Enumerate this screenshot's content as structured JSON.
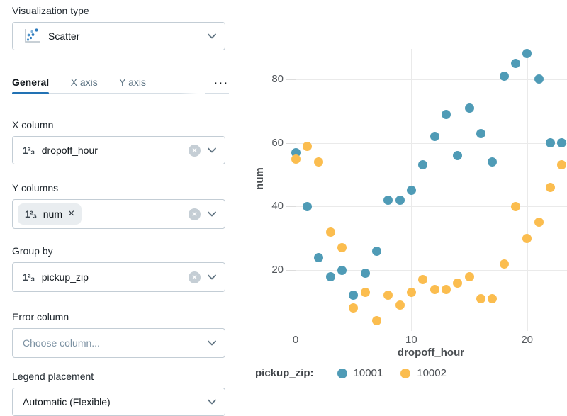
{
  "panel": {
    "viz_type": {
      "label": "Visualization type",
      "value": "Scatter"
    },
    "tabs": {
      "items": [
        "General",
        "X axis",
        "Y axis"
      ],
      "active": "General",
      "overflow": "···"
    },
    "x_column": {
      "label": "X column",
      "value": "dropoff_hour"
    },
    "y_columns": {
      "label": "Y columns",
      "chip": "num",
      "chip_remove": "×"
    },
    "group_by": {
      "label": "Group by",
      "value": "pickup_zip"
    },
    "error_column": {
      "label": "Error column",
      "placeholder": "Choose column..."
    },
    "legend_placement": {
      "label": "Legend placement",
      "value": "Automatic (Flexible)"
    },
    "icons": {
      "number_type": "1²₃",
      "clear": "×"
    },
    "accent_color": "#2272b4"
  },
  "chart_data": {
    "type": "scatter",
    "x": [
      0,
      1,
      2,
      3,
      4,
      5,
      6,
      7,
      8,
      9,
      10,
      11,
      12,
      13,
      14,
      15,
      16,
      17,
      18,
      19,
      20,
      21,
      22,
      23
    ],
    "series": [
      {
        "name": "10001",
        "color": "#4f9bb6",
        "values": [
          57,
          40,
          24,
          18,
          20,
          12,
          19,
          26,
          42,
          42,
          45,
          53,
          62,
          69,
          56,
          71,
          63,
          54,
          81,
          85,
          88,
          80,
          60,
          60
        ]
      },
      {
        "name": "10002",
        "color": "#fbbd4f",
        "values": [
          55,
          59,
          54,
          32,
          27,
          8,
          13,
          4,
          12,
          9,
          13,
          17,
          14,
          14,
          16,
          18,
          11,
          11,
          22,
          40,
          30,
          35,
          46,
          53
        ]
      }
    ],
    "title": "",
    "xlabel": "dropoff_hour",
    "ylabel": "num",
    "legend_title": "pickup_zip:",
    "legend_position": "bottom",
    "x_ticks": [
      0,
      10,
      20
    ],
    "y_ticks": [
      20,
      40,
      60,
      80
    ],
    "xlim": [
      -0.7,
      23.5
    ],
    "ylim": [
      0,
      93
    ],
    "grid": true
  }
}
